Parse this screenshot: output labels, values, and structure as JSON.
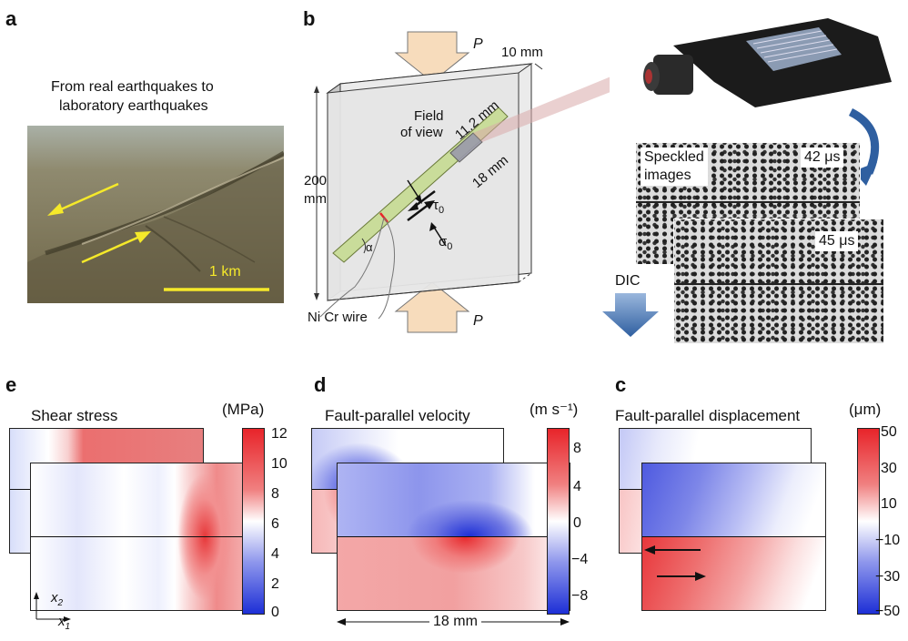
{
  "panel_a": {
    "label": "a",
    "caption_line1": "From real earthquakes to",
    "caption_line2": "laboratory earthquakes",
    "scale_label": "1 km"
  },
  "panel_b": {
    "label": "b",
    "load_top": "P",
    "load_bottom": "P",
    "thickness": "10 mm",
    "height_value": "200",
    "height_unit": "mm",
    "fov_line1": "Field",
    "fov_line2": "of view",
    "fov_width": "11.2 mm",
    "fov_length": "18 mm",
    "tau": "τ",
    "tau_sub": "0",
    "sigma": "σ",
    "sigma_sub": "0",
    "angle": "α",
    "wire": "Ni Cr wire",
    "speckle_line1": "Speckled",
    "speckle_line2": "images",
    "time1": "42 μs",
    "time2": "45 μs",
    "dic": "DIC"
  },
  "panel_e": {
    "label": "e",
    "title": "Shear stress",
    "unit": "(MPa)",
    "ticks": [
      "12",
      "10",
      "8",
      "6",
      "4",
      "2",
      "0"
    ],
    "axis_x": "x",
    "axis_x_sub": "1",
    "axis_y": "x",
    "axis_y_sub": "2"
  },
  "panel_d": {
    "label": "d",
    "title": "Fault-parallel velocity",
    "unit": "(m s⁻¹)",
    "ticks": [
      "8",
      "4",
      "0",
      "−4",
      "−8"
    ],
    "scale_label": "18 mm"
  },
  "panel_c": {
    "label": "c",
    "title": "Fault-parallel displacement",
    "unit": "(μm)",
    "ticks": [
      "50",
      "30",
      "10",
      "−10",
      "−30",
      "−50"
    ]
  },
  "colors": {
    "red": "#e8242a",
    "blue": "#1d2fd6",
    "yellow": "#f5e92a",
    "green": "#c9dc9a",
    "arrow_fill": "#f7dcbc"
  }
}
